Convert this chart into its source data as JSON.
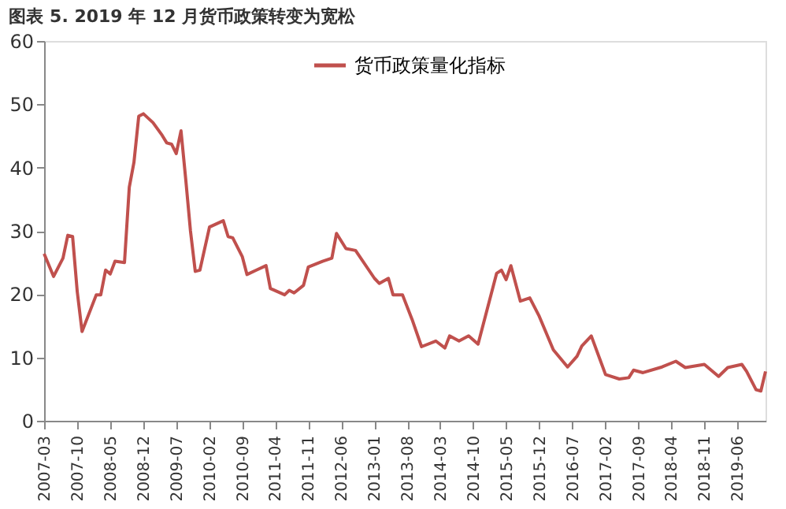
{
  "chart_data": {
    "type": "line",
    "title": "图表 5. 2019 年 12 月货币政策转变为宽松",
    "x": [
      "2007-03",
      "2007-05",
      "2007-07",
      "2007-08",
      "2007-09",
      "2007-10",
      "2007-11",
      "2008-02",
      "2008-03",
      "2008-04",
      "2008-05",
      "2008-06",
      "2008-08",
      "2008-09",
      "2008-10",
      "2008-11",
      "2008-12",
      "2009-02",
      "2009-04",
      "2009-05",
      "2009-06",
      "2009-07",
      "2009-08",
      "2009-09",
      "2009-10",
      "2009-11",
      "2009-12",
      "2010-02",
      "2010-05",
      "2010-06",
      "2010-07",
      "2010-09",
      "2010-10",
      "2010-12",
      "2011-02",
      "2011-03",
      "2011-06",
      "2011-07",
      "2011-08",
      "2011-10",
      "2011-11",
      "2012-02",
      "2012-04",
      "2012-05",
      "2012-07",
      "2012-09",
      "2013-01",
      "2013-02",
      "2013-04",
      "2013-05",
      "2013-07",
      "2013-09",
      "2013-11",
      "2014-02",
      "2014-04",
      "2014-05",
      "2014-07",
      "2014-09",
      "2014-11",
      "2015-03",
      "2015-04",
      "2015-05",
      "2015-06",
      "2015-08",
      "2015-10",
      "2015-12",
      "2016-03",
      "2016-06",
      "2016-08",
      "2016-09",
      "2016-11",
      "2017-02",
      "2017-05",
      "2017-07",
      "2017-08",
      "2017-10",
      "2018-02",
      "2018-05",
      "2018-07",
      "2018-11",
      "2019-02",
      "2019-04",
      "2019-07",
      "2019-08",
      "2019-10",
      "2019-11",
      "2019-12"
    ],
    "series": [
      {
        "name": "货币政策量化指标",
        "color": "#c0504d",
        "values": [
          26.4,
          22.8,
          25.7,
          29.3,
          29.1,
          20.4,
          14.1,
          19.9,
          19.9,
          23.8,
          23.2,
          25.2,
          25.0,
          36.9,
          40.8,
          48.1,
          48.5,
          47.1,
          45.1,
          43.9,
          43.7,
          42.2,
          45.8,
          38,
          30,
          23.6,
          23.8,
          30.6,
          31.6,
          29.1,
          28.9,
          25.9,
          23.1,
          23.8,
          24.5,
          20.9,
          19.9,
          20.6,
          20.2,
          21.4,
          24.3,
          25.2,
          25.7,
          29.6,
          27.2,
          26.9,
          22.5,
          21.7,
          22.5,
          19.9,
          19.9,
          16,
          11.7,
          12.6,
          11.5,
          13.4,
          12.6,
          13.4,
          12.1,
          23.3,
          23.8,
          22.3,
          24.5,
          18.9,
          19.4,
          16.5,
          11.2,
          8.5,
          10.2,
          11.8,
          13.4,
          7.3,
          6.6,
          6.8,
          8.0,
          7.6,
          8.5,
          9.4,
          8.4,
          8.9,
          7.0,
          8.4,
          8.9,
          7.8,
          4.9,
          4.7,
          7.8
        ]
      }
    ],
    "xlim": [
      "2007-03",
      "2019-12"
    ],
    "xticks": [
      "2007-03",
      "2007-10",
      "2008-05",
      "2008-12",
      "2009-07",
      "2010-02",
      "2010-09",
      "2011-04",
      "2011-11",
      "2012-06",
      "2013-01",
      "2013-08",
      "2014-03",
      "2014-10",
      "2015-05",
      "2015-12",
      "2016-07",
      "2017-02",
      "2017-09",
      "2018-04",
      "2018-11",
      "2019-06"
    ],
    "ylim": [
      0,
      60
    ],
    "yticks": [
      0,
      10,
      20,
      30,
      40,
      50,
      60
    ],
    "grid": false,
    "legend": "top",
    "line_style": "solid",
    "marker": "none"
  }
}
